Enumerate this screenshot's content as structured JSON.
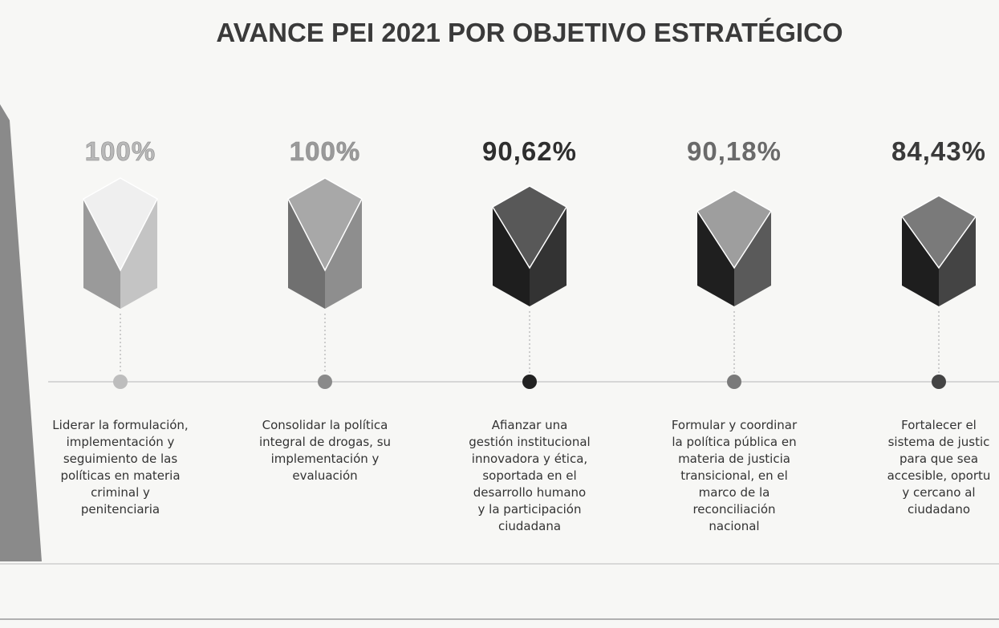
{
  "title": "AVANCE PEI 2021 POR OBJETIVO ESTRATÉGICO",
  "objectives": [
    {
      "percent": "100%",
      "description": [
        "Liderar la formulación,",
        "implementación y",
        "seguimiento de las",
        "políticas en materia",
        "criminal y",
        "penitenciaria"
      ]
    },
    {
      "percent": "100%",
      "description": [
        "Consolidar la política",
        "integral de drogas, su",
        "implementación y",
        "evaluación"
      ]
    },
    {
      "percent": "90,62%",
      "description": [
        "Afianzar una",
        "gestión institucional",
        "innovadora y ética,",
        "soportada en el",
        "desarrollo humano",
        "y la participación",
        "ciudadana"
      ]
    },
    {
      "percent": "90,18%",
      "description": [
        "Formular y coordinar",
        "la política pública en",
        "materia de justicia",
        "transicional, en el",
        "marco de la",
        "reconciliación",
        "nacional"
      ]
    },
    {
      "percent": "84,43%",
      "description": [
        "Fortalecer el",
        "sistema de justic",
        "para que sea",
        "accesible, oportu",
        "y cercano al",
        "ciudadano"
      ]
    }
  ]
}
